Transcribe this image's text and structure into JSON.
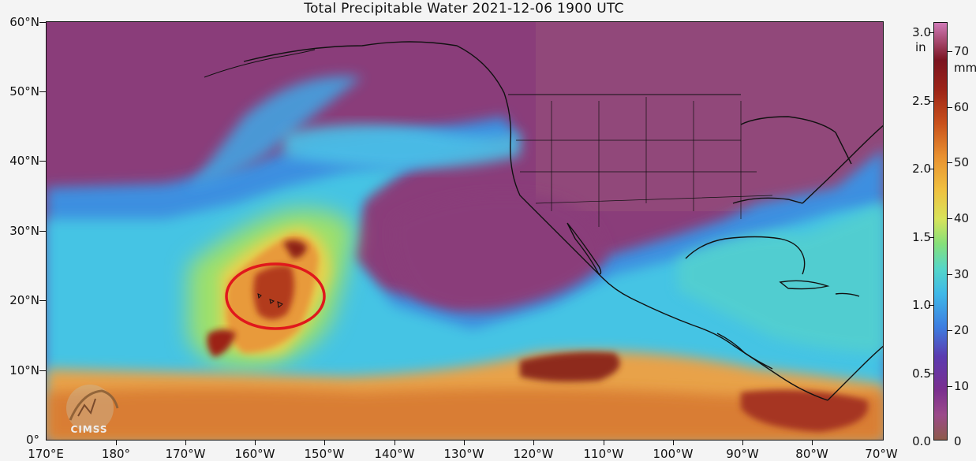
{
  "title": "Total Precipitable Water  2021-12-06 1900 UTC",
  "y_axis_labels": [
    "60°N",
    "50°N",
    "40°N",
    "30°N",
    "20°N",
    "10°N",
    "0°"
  ],
  "x_axis_labels": [
    "170°E",
    "180°",
    "170°W",
    "160°W",
    "150°W",
    "140°W",
    "130°W",
    "120°W",
    "110°W",
    "100°W",
    "90°W",
    "80°W",
    "70°W"
  ],
  "colorbar": {
    "left_unit": "in",
    "right_unit": "mm",
    "left_ticks": [
      "3.0",
      "2.5",
      "2.0",
      "1.5",
      "1.0",
      "0.5",
      "0.0"
    ],
    "right_ticks": [
      "70",
      "60",
      "50",
      "40",
      "30",
      "20",
      "10",
      "0"
    ]
  },
  "logo": {
    "text": "CIMSS"
  },
  "highlight": {
    "shape": "ellipse",
    "color": "#e0181c"
  },
  "colors": {
    "dry": "#8a3d7a",
    "moderate": "#3fb8e8",
    "moist": "#e89030",
    "very_moist": "#9c2418",
    "land_outline": "#111111"
  }
}
